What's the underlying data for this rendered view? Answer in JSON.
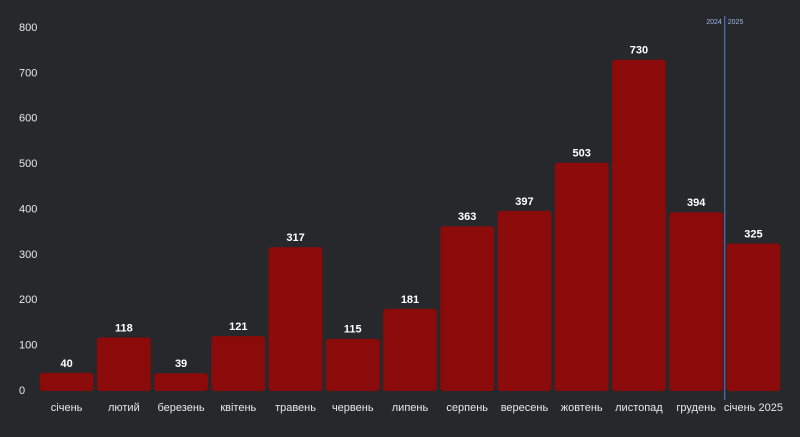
{
  "chart_data": {
    "type": "bar",
    "categories": [
      "січень",
      "лютий",
      "березень",
      "квітень",
      "травень",
      "червень",
      "липень",
      "серпень",
      "вересень",
      "жовтень",
      "листопад",
      "грудень",
      "січень 2025"
    ],
    "values": [
      40,
      118,
      39,
      121,
      317,
      115,
      181,
      363,
      397,
      503,
      730,
      394,
      325
    ],
    "color": "#8b0a0a",
    "ylim": [
      0,
      800
    ],
    "yticks": [
      0,
      100,
      200,
      300,
      400,
      500,
      600,
      700,
      800
    ],
    "grid": false,
    "divider_labels": [
      "2024",
      "2025"
    ]
  }
}
